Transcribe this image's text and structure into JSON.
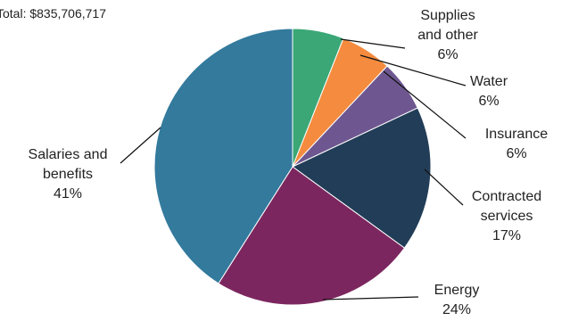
{
  "chart_data": {
    "type": "pie",
    "total_label": "Total: $835,706,717",
    "slices": [
      {
        "label_lines": [
          "Supplies",
          "and other"
        ],
        "value": 6,
        "pct_label": "6%",
        "color": "#3ba776"
      },
      {
        "label_lines": [
          "Water"
        ],
        "value": 6,
        "pct_label": "6%",
        "color": "#f48b3e"
      },
      {
        "label_lines": [
          "Insurance"
        ],
        "value": 6,
        "pct_label": "6%",
        "color": "#6e5790"
      },
      {
        "label_lines": [
          "Contracted",
          "services"
        ],
        "value": 17,
        "pct_label": "17%",
        "color": "#223d57"
      },
      {
        "label_lines": [
          "Energy"
        ],
        "value": 24,
        "pct_label": "24%",
        "color": "#7c265f"
      },
      {
        "label_lines": [
          "Salaries and",
          "benefits"
        ],
        "value": 41,
        "pct_label": "41%",
        "color": "#337a9d"
      }
    ]
  }
}
